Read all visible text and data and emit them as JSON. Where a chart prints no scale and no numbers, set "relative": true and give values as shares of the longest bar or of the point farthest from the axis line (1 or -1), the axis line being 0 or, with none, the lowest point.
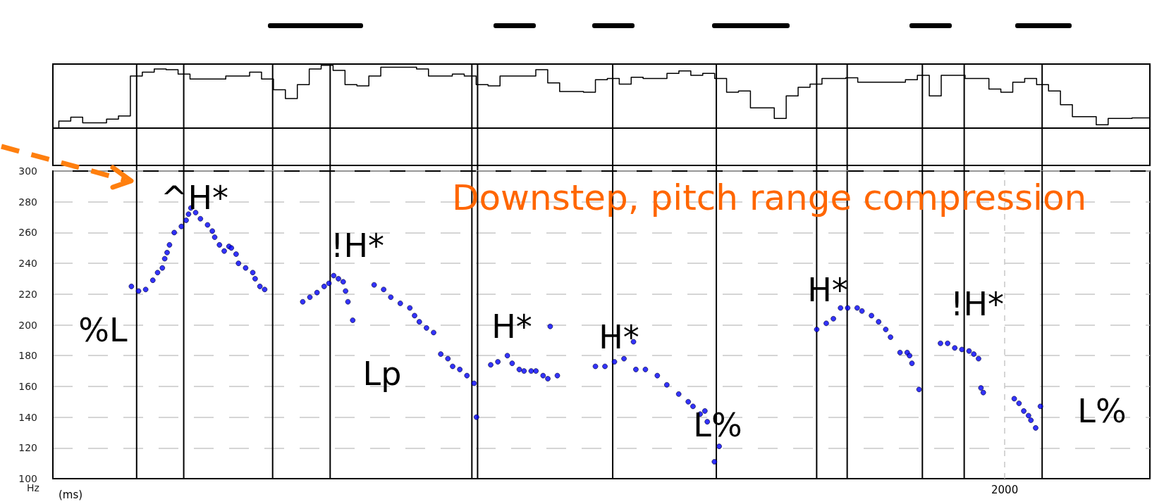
{
  "chart_data": [
    {
      "type": "step",
      "relative": true,
      "grid": "x",
      "categories": [
        null,
        null,
        null,
        null,
        null,
        null,
        null,
        null,
        null,
        null,
        null,
        null,
        null,
        null,
        null,
        null,
        null,
        null,
        null,
        null,
        null,
        null,
        null,
        null,
        null,
        null,
        null,
        null,
        null,
        null,
        null,
        null,
        null,
        null,
        null,
        null,
        null,
        null,
        null,
        null,
        null,
        null,
        null,
        null,
        null,
        null,
        null,
        null,
        null,
        null,
        null,
        null,
        null,
        null,
        null,
        null,
        null,
        null,
        null,
        null,
        null,
        null,
        null,
        null,
        null,
        null,
        null,
        null,
        null,
        null,
        null,
        null,
        null,
        null,
        null,
        null,
        null,
        null,
        null,
        null,
        null,
        null,
        null,
        null,
        null,
        null,
        null,
        null,
        null,
        null,
        null,
        null,
        null
      ],
      "series": [
        {
          "color": "#000000",
          "values": [
            0,
            0.11,
            0.17,
            0.08,
            0.08,
            0.14,
            0.19,
            0.83,
            0.89,
            0.94,
            0.93,
            0.86,
            0.78,
            0.78,
            0.78,
            0.83,
            0.83,
            0.89,
            0.78,
            0.61,
            0.47,
            0.69,
            0.94,
            1,
            0.92,
            0.69,
            0.67,
            0.83,
            0.97,
            0.97,
            0.97,
            0.94,
            0.83,
            0.83,
            0.86,
            0.83,
            0.69,
            0.67,
            0.83,
            0.83,
            0.83,
            0.93,
            0.72,
            0.58,
            0.58,
            0.57,
            0.77,
            0.79,
            0.7,
            0.81,
            0.79,
            0.79,
            0.87,
            0.91,
            0.84,
            0.87,
            0.79,
            0.57,
            0.59,
            0.32,
            0.32,
            0.15,
            0.51,
            0.65,
            0.7,
            0.79,
            0.79,
            0.8,
            0.73,
            0.73,
            0.73,
            0.73,
            0.77,
            0.84,
            0.51,
            0.84,
            0.84,
            0.79,
            0.79,
            0.62,
            0.57,
            0.73,
            0.79,
            0.69,
            0.59,
            0.37,
            0.18,
            0.18,
            0.05,
            0.15,
            0.15,
            0.16,
            0.16
          ]
        }
      ]
    },
    {
      "type": "scatter",
      "ylabel": "Hz",
      "xlabel": "(ms)",
      "ylim": [
        100,
        300
      ],
      "yticks": [
        100,
        120,
        140,
        160,
        180,
        200,
        220,
        240,
        260,
        280,
        300
      ],
      "grid": true,
      "marker": "circle",
      "categories": [
        null,
        null,
        null,
        null,
        null,
        null,
        null,
        null,
        null,
        null,
        null,
        null,
        null,
        null,
        null,
        null,
        null,
        null,
        null,
        null,
        null,
        null,
        null,
        null,
        null,
        null,
        null,
        null,
        null,
        null,
        null,
        null,
        null,
        null,
        null,
        null,
        null,
        null,
        null,
        null,
        null,
        null,
        null,
        null,
        null,
        null,
        null,
        null,
        null,
        null,
        null,
        null,
        null,
        null,
        null,
        null,
        null,
        null,
        null,
        null,
        null,
        null,
        null,
        null,
        null,
        null,
        null,
        null,
        null,
        null,
        null,
        null,
        null,
        null,
        null,
        null,
        null,
        null,
        null,
        null,
        null,
        null,
        null,
        null,
        null,
        null,
        null,
        null,
        null,
        null,
        null,
        null,
        null,
        null,
        null,
        null,
        null,
        null,
        null,
        null,
        null,
        null,
        null,
        null,
        null,
        null,
        null,
        null,
        null,
        null,
        null,
        null,
        null,
        null,
        null,
        null,
        null,
        null,
        null,
        null,
        null,
        null,
        null,
        null,
        null,
        null,
        null,
        null,
        null,
        null,
        null,
        null,
        null,
        null,
        null,
        null,
        null,
        null,
        null,
        null,
        null,
        null,
        null,
        null,
        null,
        null,
        null,
        null,
        null,
        null,
        null,
        null,
        null,
        null,
        null,
        null,
        null,
        null,
        null,
        null,
        null,
        null,
        null,
        null,
        null,
        null,
        null,
        null,
        null,
        null,
        null,
        null,
        null,
        null,
        null,
        null,
        null,
        null,
        null,
        null,
        null,
        null,
        null,
        null,
        null,
        null,
        null,
        null,
        null,
        null,
        null,
        null,
        null,
        null,
        null,
        null,
        null,
        null,
        null,
        null,
        null,
        null,
        null,
        null,
        null,
        null,
        null,
        null,
        null,
        null,
        null,
        null,
        null,
        null,
        null,
        null,
        null,
        null,
        null,
        null,
        null,
        null,
        null,
        null,
        null,
        null,
        null,
        null,
        null,
        null,
        null,
        null,
        null,
        null,
        null,
        null,
        null,
        null,
        null,
        null,
        null,
        null,
        null,
        null,
        null,
        null,
        null,
        null,
        null,
        null,
        null,
        null,
        null,
        null,
        null,
        null,
        null,
        null,
        null,
        null,
        null,
        null,
        null,
        null,
        null,
        null,
        null,
        null,
        null,
        null,
        null,
        null,
        null,
        null,
        null,
        null,
        null,
        null,
        null,
        null,
        null,
        null,
        null,
        null,
        null,
        null,
        null,
        null,
        null,
        null,
        null,
        null,
        null,
        null,
        null,
        null,
        null,
        null,
        null,
        null,
        null,
        null,
        null,
        null,
        null,
        null,
        null,
        null,
        null,
        null,
        null,
        null,
        null,
        null,
        null,
        null,
        null,
        null,
        null,
        null,
        null,
        null,
        null,
        null,
        null,
        null,
        null,
        null,
        null,
        null,
        null,
        null,
        null,
        null,
        null,
        null,
        null,
        null,
        null,
        null,
        null,
        null,
        null,
        null,
        null,
        null,
        null,
        null,
        null,
        null,
        null,
        null,
        null,
        null,
        null,
        null,
        null,
        null,
        null,
        null,
        null,
        null,
        null,
        null,
        null,
        null,
        null,
        null,
        null,
        null,
        null,
        null,
        null,
        null,
        null,
        null,
        null,
        null,
        null,
        null,
        null,
        null,
        null,
        null,
        null,
        null,
        null,
        null,
        null,
        null,
        null,
        null,
        null,
        null,
        null,
        null,
        null,
        null,
        null,
        null,
        "2000",
        null,
        null,
        null,
        null,
        null,
        null,
        null,
        null,
        null,
        null,
        null,
        null,
        null,
        null,
        null,
        null,
        null,
        null,
        null,
        null,
        null,
        null,
        null,
        null,
        null,
        null,
        null,
        null,
        null,
        null,
        null,
        null,
        null,
        null,
        null,
        null,
        null,
        null,
        null,
        null,
        null,
        null,
        null,
        null,
        null,
        null,
        null,
        null,
        null,
        null,
        null,
        null,
        null,
        null,
        null,
        null,
        null,
        null,
        null,
        null,
        null
      ],
      "series": [
        {
          "color": "#0000ff",
          "values": [
            null,
            null,
            null,
            null,
            null,
            null,
            null,
            null,
            null,
            null,
            null,
            null,
            null,
            null,
            null,
            null,
            null,
            null,
            null,
            null,
            null,
            null,
            null,
            null,
            null,
            null,
            null,
            null,
            null,
            null,
            null,
            null,
            null,
            225,
            null,
            null,
            222,
            null,
            null,
            223,
            null,
            null,
            229,
            null,
            234,
            null,
            237,
            243,
            247,
            252,
            null,
            260,
            null,
            null,
            264,
            null,
            268,
            272,
            276,
            null,
            273,
            null,
            269,
            null,
            null,
            265,
            null,
            261,
            257,
            null,
            252,
            null,
            248,
            null,
            251,
            250,
            null,
            246,
            240,
            null,
            null,
            237,
            null,
            null,
            234,
            230,
            null,
            225,
            null,
            223,
            null,
            null,
            null,
            null,
            null,
            null,
            null,
            null,
            null,
            null,
            null,
            null,
            null,
            null,
            null,
            215,
            null,
            null,
            218,
            null,
            null,
            221,
            null,
            null,
            225,
            null,
            227,
            null,
            232,
            null,
            230,
            null,
            228,
            222,
            215,
            null,
            203,
            null,
            null,
            null,
            null,
            null,
            null,
            null,
            null,
            226,
            null,
            null,
            null,
            223,
            null,
            null,
            218,
            null,
            null,
            null,
            214,
            null,
            null,
            null,
            211,
            null,
            206,
            null,
            202,
            null,
            null,
            198,
            null,
            null,
            195,
            null,
            null,
            181,
            null,
            null,
            178,
            null,
            173,
            null,
            null,
            171,
            null,
            null,
            167,
            null,
            null,
            162,
            140,
            null,
            null,
            null,
            null,
            null,
            174,
            null,
            null,
            176,
            null,
            null,
            null,
            180,
            null,
            175,
            null,
            null,
            171,
            null,
            170,
            null,
            null,
            170,
            null,
            170,
            null,
            null,
            167,
            null,
            165,
            199,
            null,
            null,
            167,
            null,
            null,
            null,
            null,
            null,
            null,
            null,
            null,
            null,
            null,
            null,
            null,
            null,
            null,
            null,
            173,
            null,
            null,
            null,
            173,
            null,
            null,
            null,
            176,
            null,
            null,
            null,
            178,
            null,
            null,
            null,
            189,
            171,
            null,
            null,
            null,
            171,
            null,
            null,
            null,
            null,
            167,
            null,
            null,
            null,
            161,
            null,
            null,
            null,
            null,
            155,
            null,
            null,
            null,
            150,
            null,
            147,
            null,
            null,
            142,
            null,
            144,
            137,
            null,
            null,
            111,
            null,
            121,
            null,
            null,
            null,
            null,
            null,
            null,
            null,
            null,
            null,
            null,
            null,
            null,
            null,
            null,
            null,
            null,
            null,
            null,
            null,
            null,
            null,
            null,
            null,
            null,
            null,
            null,
            null,
            null,
            null,
            null,
            null,
            null,
            null,
            null,
            null,
            null,
            null,
            null,
            null,
            null,
            197,
            null,
            null,
            null,
            201,
            null,
            null,
            204,
            null,
            null,
            211,
            null,
            null,
            211,
            null,
            null,
            null,
            211,
            null,
            209,
            null,
            null,
            null,
            206,
            null,
            null,
            202,
            null,
            null,
            197,
            null,
            192,
            null,
            null,
            null,
            182,
            null,
            null,
            182,
            180,
            175,
            null,
            null,
            158,
            null,
            null,
            null,
            null,
            null,
            null,
            null,
            null,
            188,
            null,
            null,
            188,
            null,
            null,
            185,
            null,
            null,
            184,
            null,
            null,
            183,
            null,
            181,
            null,
            178,
            159,
            156,
            null,
            null,
            null,
            null,
            null,
            null,
            null,
            null,
            null,
            null,
            null,
            null,
            152,
            null,
            149,
            null,
            144,
            null,
            141,
            138,
            null,
            133,
            null,
            147,
            null,
            null,
            null,
            null,
            null,
            null,
            null,
            null,
            null,
            null,
            null,
            null,
            null,
            null,
            null,
            null,
            null,
            null,
            null,
            null,
            null,
            null,
            null,
            null,
            null,
            null,
            null,
            null,
            null,
            null,
            null,
            null,
            null,
            null,
            null,
            null,
            null,
            null,
            null,
            null,
            null,
            null,
            null,
            null,
            null,
            null
          ]
        }
      ],
      "annotations": [
        "%L",
        "^H*",
        "!H*",
        "Lp",
        "H*",
        "H*",
        "L%",
        "H*",
        "!H*",
        "L%",
        "Downstep, pitch range compression"
      ]
    }
  ]
}
